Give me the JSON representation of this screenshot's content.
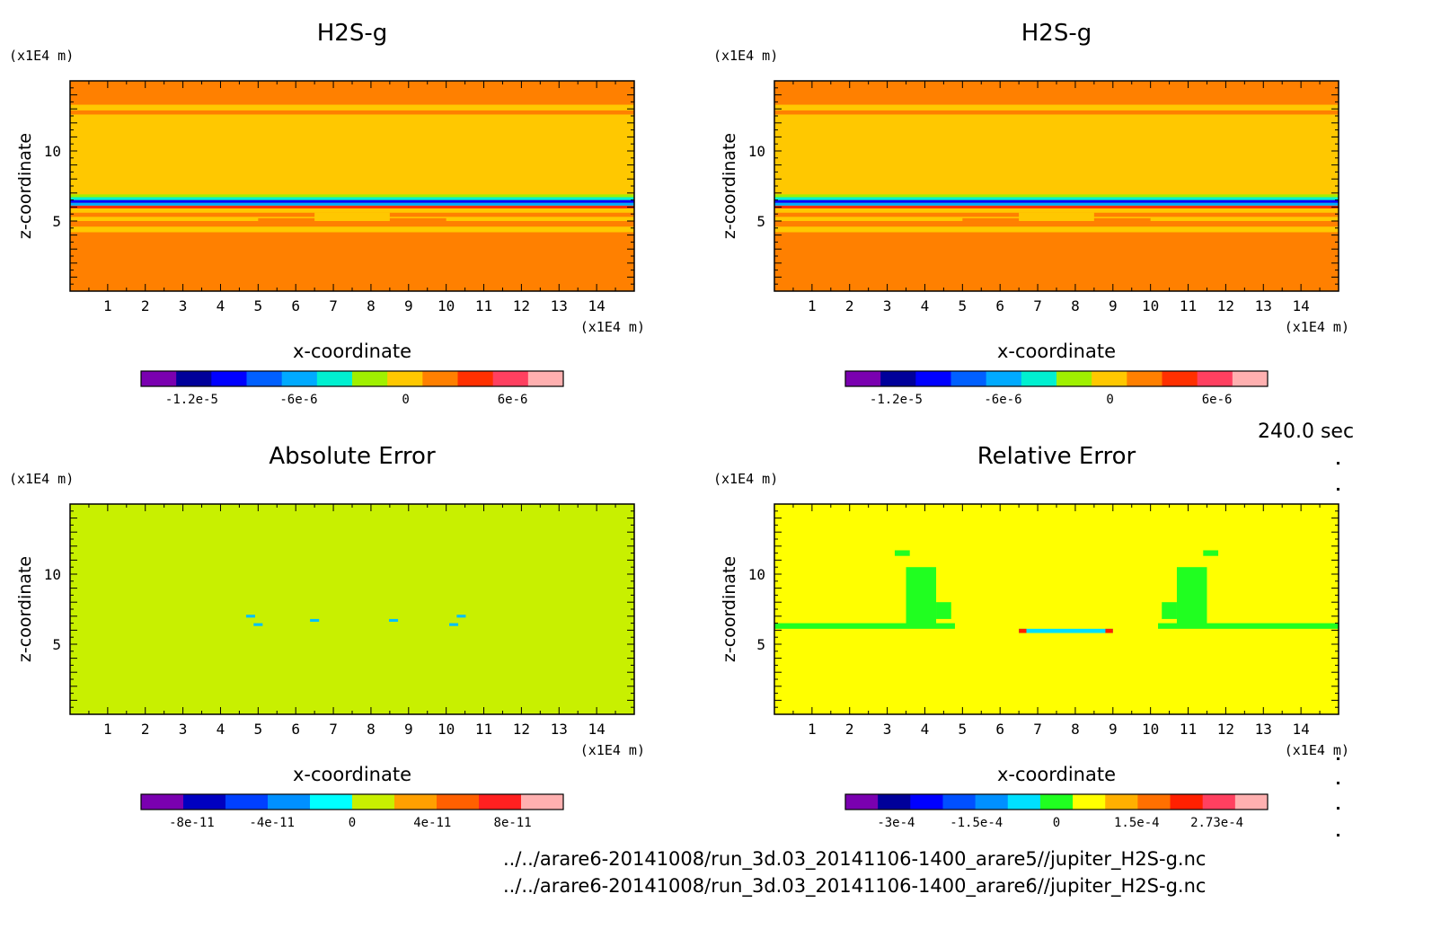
{
  "chart_data": [
    {
      "type": "heatmap",
      "title": "H2S-g",
      "xlabel": "x-coordinate",
      "ylabel": "z-coordinate",
      "x_unit": "(x1E4 m)",
      "y_unit": "(x1E4 m)",
      "xlim": [
        0,
        15
      ],
      "ylim": [
        0,
        15
      ],
      "x_ticks": [
        1,
        2,
        3,
        4,
        5,
        6,
        7,
        8,
        9,
        10,
        11,
        12,
        13,
        14
      ],
      "y_ticks": [
        5,
        10
      ],
      "field": "h2s",
      "colorbar": {
        "colors": [
          "#7a00b0",
          "#00009a",
          "#0000ff",
          "#0060ff",
          "#00aaff",
          "#00f0d0",
          "#a0f000",
          "#ffc800",
          "#ff8000",
          "#ff3000",
          "#ff4060",
          "#ffb0b0"
        ],
        "tick_labels": [
          "-1.2e-5",
          "-6e-6",
          "0",
          "6e-6"
        ]
      }
    },
    {
      "type": "heatmap",
      "title": "H2S-g",
      "xlabel": "x-coordinate",
      "ylabel": "z-coordinate",
      "x_unit": "(x1E4 m)",
      "y_unit": "(x1E4 m)",
      "xlim": [
        0,
        15
      ],
      "ylim": [
        0,
        15
      ],
      "x_ticks": [
        1,
        2,
        3,
        4,
        5,
        6,
        7,
        8,
        9,
        10,
        11,
        12,
        13,
        14
      ],
      "y_ticks": [
        5,
        10
      ],
      "field": "h2s",
      "colorbar": {
        "colors": [
          "#7a00b0",
          "#00009a",
          "#0000ff",
          "#0060ff",
          "#00aaff",
          "#00f0d0",
          "#a0f000",
          "#ffc800",
          "#ff8000",
          "#ff3000",
          "#ff4060",
          "#ffb0b0"
        ],
        "tick_labels": [
          "-1.2e-5",
          "-6e-6",
          "0",
          "6e-6"
        ]
      }
    },
    {
      "type": "heatmap",
      "title": "Absolute Error",
      "xlabel": "x-coordinate",
      "ylabel": "z-coordinate",
      "x_unit": "(x1E4 m)",
      "y_unit": "(x1E4 m)",
      "xlim": [
        0,
        15
      ],
      "ylim": [
        0,
        15
      ],
      "x_ticks": [
        1,
        2,
        3,
        4,
        5,
        6,
        7,
        8,
        9,
        10,
        11,
        12,
        13,
        14
      ],
      "y_ticks": [
        5,
        10
      ],
      "field": "abs",
      "colorbar": {
        "colors": [
          "#7a00b0",
          "#0000c0",
          "#0040ff",
          "#0090ff",
          "#00ffff",
          "#c8f000",
          "#ffa000",
          "#ff6000",
          "#ff2020",
          "#ffb0b0"
        ],
        "tick_labels": [
          "-8e-11",
          "-4e-11",
          "0",
          "4e-11",
          "8e-11"
        ]
      }
    },
    {
      "type": "heatmap",
      "title": "Relative Error",
      "xlabel": "x-coordinate",
      "ylabel": "z-coordinate",
      "x_unit": "(x1E4 m)",
      "y_unit": "(x1E4 m)",
      "xlim": [
        0,
        15
      ],
      "ylim": [
        0,
        15
      ],
      "x_ticks": [
        1,
        2,
        3,
        4,
        5,
        6,
        7,
        8,
        9,
        10,
        11,
        12,
        13,
        14
      ],
      "y_ticks": [
        5,
        10
      ],
      "field": "rel",
      "colorbar": {
        "colors": [
          "#7a00b0",
          "#00009a",
          "#0000ff",
          "#0050ff",
          "#0090ff",
          "#00e0ff",
          "#20ff20",
          "#ffff00",
          "#ffb000",
          "#ff7000",
          "#ff2000",
          "#ff4060",
          "#ffb0b0"
        ],
        "tick_labels": [
          "-3e-4",
          "-1.5e-4",
          "0",
          "1.5e-4",
          "2.73e-4"
        ]
      }
    }
  ],
  "time_label": "240.0 sec",
  "file_paths": [
    "../../arare6-20141008/run_3d.03_20141106-1400_arare5//jupiter_H2S-g.nc",
    "../../arare6-20141008/run_3d.03_20141106-1400_arare6//jupiter_H2S-g.nc"
  ]
}
